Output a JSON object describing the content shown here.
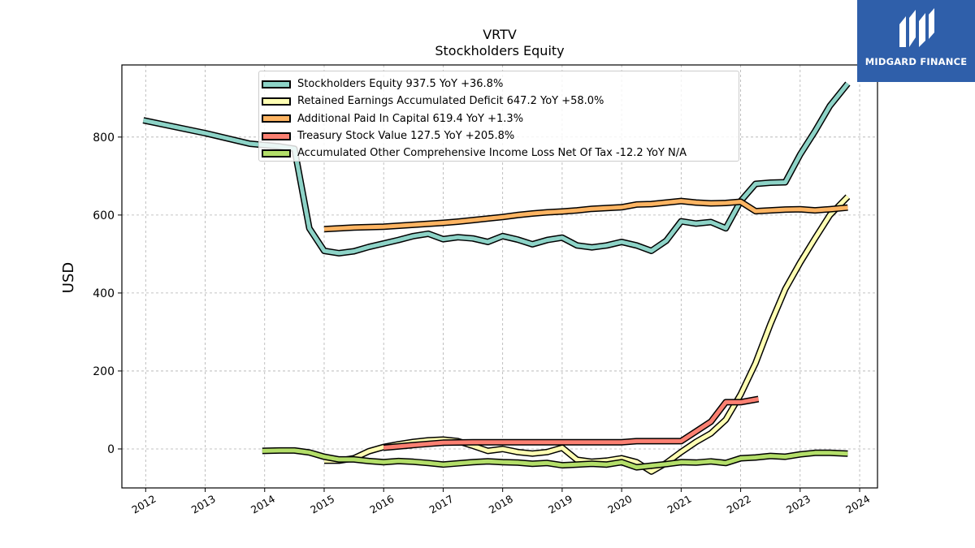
{
  "chart_data": {
    "type": "line",
    "title": "VRTV",
    "subtitle": "Stockholders  Equity",
    "ylabel": "USD",
    "xlabel": "",
    "xlim": [
      2011.6,
      2024.3
    ],
    "ylim": [
      -100,
      985
    ],
    "x_ticks": [
      "2012",
      "2013",
      "2014",
      "2015",
      "2016",
      "2017",
      "2018",
      "2019",
      "2020",
      "2021",
      "2022",
      "2023",
      "2024"
    ],
    "y_ticks": [
      "0",
      "200",
      "400",
      "600",
      "800"
    ],
    "grid": true,
    "legend_position": "top-center",
    "series": [
      {
        "name": "Stockholders Equity  937.5 YoY +36.8%",
        "color": "#8dd3c7",
        "x": [
          2011.96,
          2013.0,
          2013.75,
          2014.25,
          2014.5,
          2014.75,
          2015.0,
          2015.25,
          2015.5,
          2015.75,
          2016.0,
          2016.25,
          2016.5,
          2016.75,
          2017.0,
          2017.25,
          2017.5,
          2017.75,
          2018.0,
          2018.25,
          2018.5,
          2018.75,
          2019.0,
          2019.25,
          2019.5,
          2019.75,
          2020.0,
          2020.25,
          2020.5,
          2020.75,
          2021.0,
          2021.25,
          2021.5,
          2021.75,
          2022.0,
          2022.25,
          2022.5,
          2022.75,
          2023.0,
          2023.25,
          2023.5,
          2023.8
        ],
        "y": [
          843,
          810,
          783,
          776,
          770,
          566,
          508,
          502,
          507,
          518,
          527,
          536,
          546,
          552,
          538,
          543,
          540,
          531,
          546,
          537,
          525,
          536,
          542,
          522,
          517,
          522,
          531,
          522,
          508,
          534,
          584,
          578,
          582,
          566,
          636,
          680,
          683,
          684,
          755,
          815,
          880,
          937
        ]
      },
      {
        "name": "Retained Earnings Accumulated Deficit  647.2 YoY +58.0%",
        "color": "#ffffb3",
        "x": [
          2015.0,
          2015.25,
          2015.5,
          2015.75,
          2016.0,
          2016.25,
          2016.5,
          2016.75,
          2017.0,
          2017.25,
          2017.5,
          2017.75,
          2018.0,
          2018.25,
          2018.5,
          2018.75,
          2019.0,
          2019.25,
          2019.5,
          2019.75,
          2020.0,
          2020.25,
          2020.5,
          2020.75,
          2021.0,
          2021.25,
          2021.5,
          2021.75,
          2022.0,
          2022.25,
          2022.5,
          2022.75,
          2023.0,
          2023.25,
          2023.5,
          2023.8
        ],
        "y": [
          -30,
          -30,
          -24,
          -6,
          5,
          12,
          18,
          22,
          24,
          20,
          8,
          -5,
          0,
          -8,
          -12,
          -8,
          3,
          -28,
          -33,
          -30,
          -24,
          -34,
          -58,
          -36,
          -8,
          18,
          40,
          75,
          140,
          220,
          320,
          410,
          478,
          540,
          600,
          647
        ]
      },
      {
        "name": "Additional Paid In Capital  619.4 YoY +1.3%",
        "color": "#fdb462",
        "x": [
          2015.0,
          2015.5,
          2016.0,
          2016.5,
          2017.0,
          2017.25,
          2017.5,
          2017.75,
          2018.0,
          2018.25,
          2018.5,
          2018.75,
          2019.0,
          2019.25,
          2019.5,
          2019.75,
          2020.0,
          2020.25,
          2020.5,
          2020.75,
          2021.0,
          2021.25,
          2021.5,
          2021.75,
          2022.0,
          2022.25,
          2022.5,
          2022.75,
          2023.0,
          2023.25,
          2023.5,
          2023.8
        ],
        "y": [
          564,
          568,
          570,
          575,
          580,
          583,
          587,
          591,
          595,
          600,
          604,
          607,
          609,
          612,
          616,
          618,
          620,
          627,
          628,
          632,
          636,
          632,
          630,
          631,
          634,
          610,
          612,
          614,
          615,
          612,
          615,
          619
        ]
      },
      {
        "name": "Treasury Stock Value  127.5 YoY +205.8%",
        "color": "#fb8072",
        "x": [
          2016.0,
          2016.5,
          2017.0,
          2017.5,
          2018.0,
          2018.5,
          2019.0,
          2019.5,
          2020.0,
          2020.25,
          2020.5,
          2020.75,
          2021.0,
          2021.25,
          2021.5,
          2021.75,
          2022.0,
          2022.3
        ],
        "y": [
          3,
          10,
          16,
          17,
          17,
          17,
          17,
          17,
          17,
          20,
          20,
          20,
          20,
          45,
          70,
          120,
          120,
          128
        ]
      },
      {
        "name": "Accumulated Other Comprehensive Income Loss Net Of Tax  -12.2 YoY N/A",
        "color": "#b3de69",
        "x": [
          2013.96,
          2014.25,
          2014.5,
          2014.75,
          2015.0,
          2015.25,
          2015.5,
          2015.75,
          2016.0,
          2016.25,
          2016.5,
          2016.75,
          2017.0,
          2017.25,
          2017.5,
          2017.75,
          2018.0,
          2018.25,
          2018.5,
          2018.75,
          2019.0,
          2019.25,
          2019.5,
          2019.75,
          2020.0,
          2020.25,
          2020.5,
          2020.75,
          2021.0,
          2021.25,
          2021.5,
          2021.75,
          2022.0,
          2022.25,
          2022.5,
          2022.75,
          2023.0,
          2023.25,
          2023.5,
          2023.8
        ],
        "y": [
          -5,
          -4,
          -4,
          -9,
          -20,
          -27,
          -27,
          -31,
          -34,
          -31,
          -33,
          -36,
          -40,
          -37,
          -34,
          -32,
          -34,
          -35,
          -38,
          -36,
          -42,
          -40,
          -38,
          -40,
          -34,
          -47,
          -43,
          -39,
          -34,
          -35,
          -32,
          -36,
          -24,
          -22,
          -18,
          -20,
          -14,
          -10,
          -10,
          -12
        ]
      }
    ]
  },
  "logo": {
    "text": "MIDGARD FINANCE",
    "icon": "midgard-logo-icon"
  }
}
